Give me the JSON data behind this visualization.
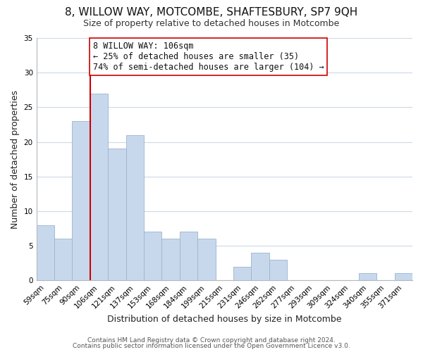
{
  "title": "8, WILLOW WAY, MOTCOMBE, SHAFTESBURY, SP7 9QH",
  "subtitle": "Size of property relative to detached houses in Motcombe",
  "xlabel": "Distribution of detached houses by size in Motcombe",
  "ylabel": "Number of detached properties",
  "bar_color": "#c8d8ec",
  "bar_edge_color": "#9ab4cc",
  "bin_labels": [
    "59sqm",
    "75sqm",
    "90sqm",
    "106sqm",
    "121sqm",
    "137sqm",
    "153sqm",
    "168sqm",
    "184sqm",
    "199sqm",
    "215sqm",
    "231sqm",
    "246sqm",
    "262sqm",
    "277sqm",
    "293sqm",
    "309sqm",
    "324sqm",
    "340sqm",
    "355sqm",
    "371sqm"
  ],
  "bar_heights": [
    8,
    6,
    23,
    27,
    19,
    21,
    7,
    6,
    7,
    6,
    0,
    2,
    4,
    3,
    0,
    0,
    0,
    0,
    1,
    0,
    1
  ],
  "ylim": [
    0,
    35
  ],
  "yticks": [
    0,
    5,
    10,
    15,
    20,
    25,
    30,
    35
  ],
  "reference_line_index": 3,
  "reference_line_color": "#cc0000",
  "annotation_line1": "8 WILLOW WAY: 106sqm",
  "annotation_line2": "← 25% of detached houses are smaller (35)",
  "annotation_line3": "74% of semi-detached houses are larger (104) →",
  "annotation_box_color": "#ffffff",
  "annotation_box_edge_color": "#cc0000",
  "footer_line1": "Contains HM Land Registry data © Crown copyright and database right 2024.",
  "footer_line2": "Contains public sector information licensed under the Open Government Licence v3.0.",
  "background_color": "#ffffff",
  "grid_color": "#cdd8e4",
  "title_fontsize": 11,
  "subtitle_fontsize": 9,
  "axis_label_fontsize": 9,
  "tick_fontsize": 7.5,
  "annotation_fontsize": 8.5,
  "footer_fontsize": 6.5
}
